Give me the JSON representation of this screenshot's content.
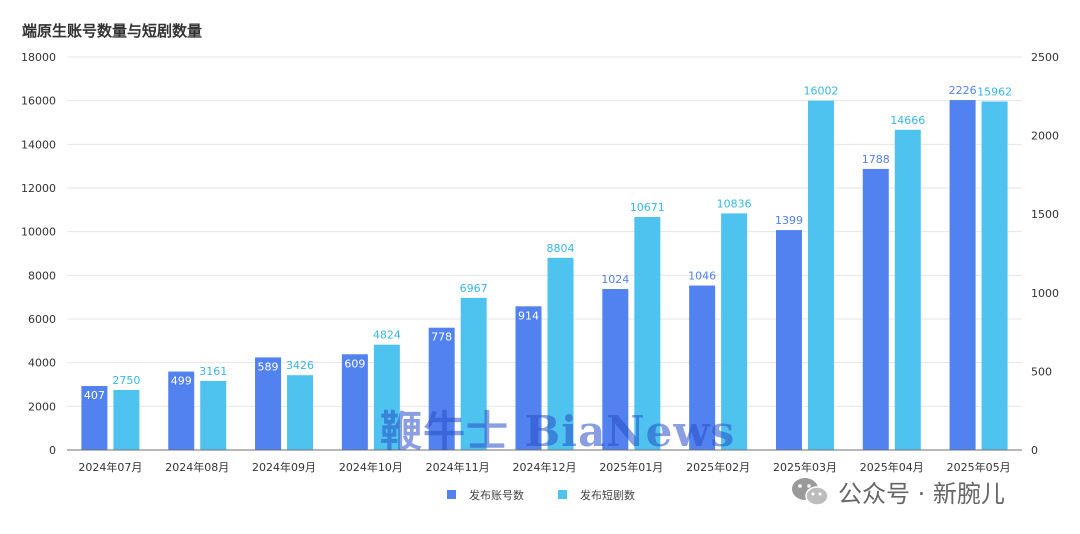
{
  "title": "端原生账号数量与短剧数量",
  "chart_data": {
    "type": "bar",
    "title": "端原生账号数量与短剧数量",
    "categories": [
      "2024年07月",
      "2024年08月",
      "2024年09月",
      "2024年10月",
      "2024年11月",
      "2024年12月",
      "2025年01月",
      "2025年02月",
      "2025年03月",
      "2025年04月",
      "2025年05月"
    ],
    "series": [
      {
        "name": "发布账号数",
        "axis": "right",
        "color": "#5282f0",
        "values": [
          407,
          499,
          589,
          609,
          778,
          914,
          1024,
          1046,
          1399,
          1788,
          2226
        ]
      },
      {
        "name": "发布短剧数",
        "axis": "left",
        "color": "#4ec3ef",
        "values": [
          2750,
          3161,
          3426,
          4824,
          6967,
          8804,
          10671,
          10836,
          16002,
          14666,
          15962
        ]
      }
    ],
    "y_left": {
      "range": [
        0,
        18000
      ],
      "ticks": [
        "0",
        "2000",
        "4000",
        "6000",
        "8000",
        "10000",
        "12000",
        "14000",
        "16000",
        "18000"
      ]
    },
    "y_right": {
      "range": [
        0,
        2500
      ],
      "ticks": [
        "0",
        "500",
        "1000",
        "1500",
        "2000",
        "2500"
      ]
    },
    "grid": true,
    "legend": "bottom-center"
  },
  "watermarks": {
    "main": "鞭牛士 BiaNews",
    "source": "公众号 · 新腕儿"
  }
}
